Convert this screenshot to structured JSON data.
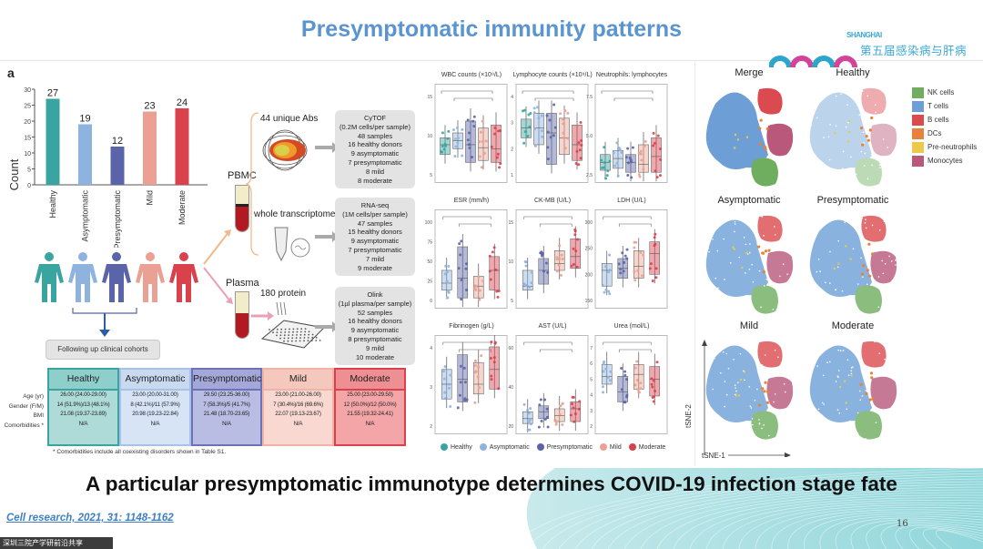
{
  "slide": {
    "title": "Presymptomatic immunity patterns",
    "headline": "A particular presymptomatic immunotype determines COVID-19 infection stage fate",
    "citation": "Cell research, 2021, 31: 1148-1162",
    "page_number": "16",
    "conference_logo": {
      "text_en": "SHANGHAI",
      "text_cn": "第五届感染病与肝病",
      "year_rings": "2022"
    },
    "taskbar_chip": "深圳三院产学研前沿共享"
  },
  "colors": {
    "healthy": "#3aa5a0",
    "asymptomatic": "#8fb3df",
    "presymptomatic": "#5b64a8",
    "mild": "#eaa193",
    "moderate": "#d9414d",
    "title_blue": "#5a95d0"
  },
  "panel_a": {
    "label": "a",
    "chart_data": {
      "type": "bar",
      "title": "",
      "xlabel": "",
      "ylabel": "Count",
      "ylim": [
        0,
        30
      ],
      "yticks": [
        0,
        5,
        10,
        15,
        20,
        25,
        30
      ],
      "categories": [
        "Healthy",
        "Asymptomatic",
        "Presymptomatic",
        "Mild",
        "Moderate"
      ],
      "values": [
        27,
        19,
        12,
        23,
        24
      ],
      "data_labels": [
        "27",
        "19",
        "12",
        "23",
        "24"
      ]
    },
    "follow_up_label": "Following up clinical cohorts",
    "sample_types": {
      "pbmc": "PBMC",
      "plasma": "Plasma"
    },
    "technologies": [
      {
        "label": "44 unique Abs",
        "box": [
          "CyTOF",
          "(0.2M cells/per sample)",
          "48 samples",
          "16 healthy donors",
          "9 asymptomatic",
          "7 presymptomatic",
          "8 mild",
          "8 moderate"
        ]
      },
      {
        "label": "whole transcriptome",
        "box": [
          "RNA-seq",
          "(1M cells/per sample)",
          "47 samples",
          "15 healthy donors",
          "9 asymptomatic",
          "7 presymptomatic",
          "7 mild",
          "9 moderate"
        ]
      },
      {
        "label": "180 protein",
        "box": [
          "Olink",
          "(1µl plasma/per sample)",
          "52 samples",
          "16 healthy donors",
          "9 asymptomatic",
          "8 presymptomatic",
          "9 mild",
          "10 moderate"
        ]
      }
    ],
    "table": {
      "row_labels": [
        "Age (yr)",
        "Gender (F/M)",
        "BMI",
        "Comorbidities *"
      ],
      "columns": [
        {
          "header": "Healthy",
          "cells": [
            "26.00 (24.00-29.00)",
            "14 (51.9%)/13 (48.1%)",
            "21.08 (19.37-23.89)",
            "N/A"
          ]
        },
        {
          "header": "Asymptomatic",
          "cells": [
            "23.00 (20.00-31.00)",
            "8 (42.1%)/11 (57.9%)",
            "20.98 (19.23-22.84)",
            "N/A"
          ]
        },
        {
          "header": "Presymptomatic",
          "cells": [
            "29.50 (23.25-36.00)",
            "7 (58.3%)/5 (41.7%)",
            "21.48 (18.70-23.65)",
            "N/A"
          ]
        },
        {
          "header": "Mild",
          "cells": [
            "23.00 (21.00-26.00)",
            "7 (30.4%)/16 (69.6%)",
            "22.07 (19.13-23.67)",
            "N/A"
          ]
        },
        {
          "header": "Moderate",
          "cells": [
            "25.00 (23.00-29.50)",
            "12 (50.0%)/12 (50.0%)",
            "21.55 (19.32-24.41)",
            "N/A"
          ]
        }
      ],
      "footnote": "* Comorbidities include all coexisting disorders shown in Table S1."
    }
  },
  "boxplots": {
    "panels": [
      {
        "title": "WBC counts (×10⁹/L)",
        "yticks": [
          "5",
          "10",
          "15"
        ],
        "groups": 5
      },
      {
        "title": "Lymphocyte counts (×10⁹/L)",
        "yticks": [
          "1",
          "2",
          "3",
          "4"
        ],
        "groups": 5
      },
      {
        "title": "Neutrophils: lymphocytes",
        "yticks": [
          "2.5",
          "5.0",
          "7.5"
        ],
        "groups": 5
      },
      {
        "title": "ESR (mm/h)",
        "yticks": [
          "0",
          "25",
          "50",
          "75",
          "100"
        ],
        "groups": 4
      },
      {
        "title": "CK-MB (U/L)",
        "yticks": [
          "5",
          "10",
          "15"
        ],
        "groups": 4
      },
      {
        "title": "LDH (U/L)",
        "yticks": [
          "150",
          "200",
          "250",
          "300"
        ],
        "groups": 4
      },
      {
        "title": "Fibrinogen (g/L)",
        "yticks": [
          "2",
          "3",
          "4"
        ],
        "groups": 4
      },
      {
        "title": "AST (U/L)",
        "yticks": [
          "20",
          "40",
          "60"
        ],
        "groups": 4
      },
      {
        "title": "Urea (mol/L)",
        "yticks": [
          "2",
          "3",
          "4",
          "5",
          "6",
          "7"
        ],
        "groups": 4
      }
    ],
    "legend": [
      "Healthy",
      "Asymptomatic",
      "Presymptomatic",
      "Mild",
      "Moderate"
    ]
  },
  "tsne": {
    "panels": [
      "Merge",
      "Healthy",
      "Asymptomatic",
      "Presymptomatic",
      "Mild",
      "Moderate"
    ],
    "legend": [
      {
        "label": "NK cells",
        "color": "#6fae5e"
      },
      {
        "label": "T cells",
        "color": "#6d9fd6"
      },
      {
        "label": "B cells",
        "color": "#db4a4e"
      },
      {
        "label": "DCs",
        "color": "#e8823a"
      },
      {
        "label": "Pre-neutrophils",
        "color": "#ecc94a"
      },
      {
        "label": "Monocytes",
        "color": "#b9587a"
      }
    ],
    "x_axis": "tSNE-1",
    "y_axis": "tSNE-2"
  }
}
